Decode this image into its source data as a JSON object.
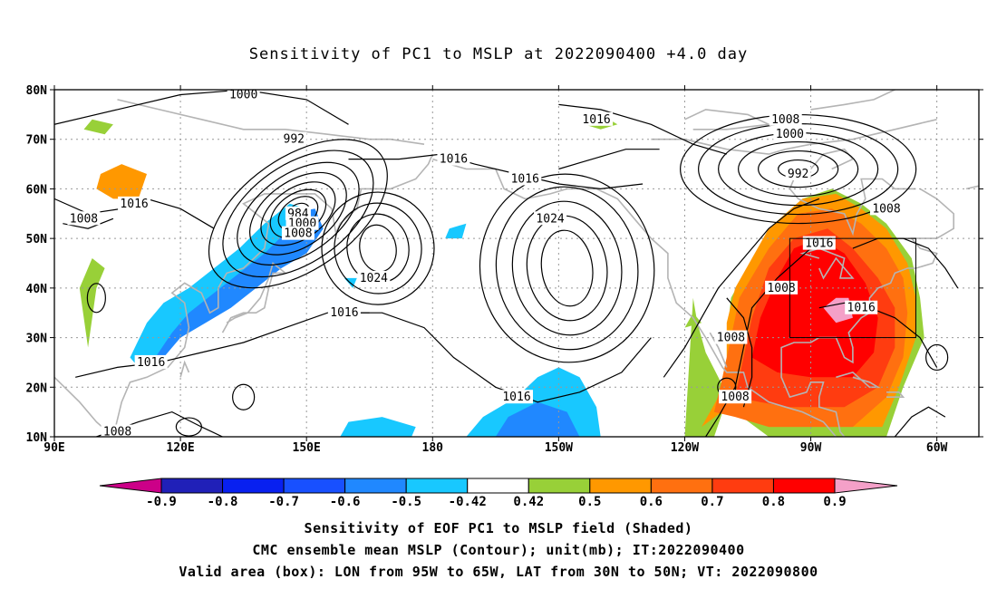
{
  "title": "Sensitivity of PC1 to MSLP at 2022090400 +4.0 day",
  "map": {
    "lat_ticks": [
      "80N",
      "70N",
      "60N",
      "50N",
      "40N",
      "30N",
      "20N",
      "10N"
    ],
    "lon_ticks": [
      "90E",
      "120E",
      "150E",
      "180",
      "150W",
      "120W",
      "90W",
      "60W"
    ],
    "valid_box": {
      "lon": [
        -95,
        -65
      ],
      "lat": [
        30,
        50
      ]
    },
    "contour_labels": [
      {
        "text": "1000",
        "lon": 135,
        "lat": 79
      },
      {
        "text": "992",
        "lon": 147,
        "lat": 70
      },
      {
        "text": "984",
        "lon": 148,
        "lat": 55
      },
      {
        "text": "1000",
        "lon": 149,
        "lat": 53
      },
      {
        "text": "1008",
        "lon": 148,
        "lat": 51
      },
      {
        "text": "1016",
        "lon": 109,
        "lat": 57
      },
      {
        "text": "1008",
        "lon": 97,
        "lat": 54
      },
      {
        "text": "1016",
        "lon": -175,
        "lat": 66
      },
      {
        "text": "1024",
        "lon": 166,
        "lat": 42
      },
      {
        "text": "1016",
        "lon": 159,
        "lat": 35
      },
      {
        "text": "1016",
        "lon": -158,
        "lat": 62
      },
      {
        "text": "1024",
        "lon": -152,
        "lat": 54
      },
      {
        "text": "1016",
        "lon": -141,
        "lat": 74
      },
      {
        "text": "1016",
        "lon": -160,
        "lat": 18
      },
      {
        "text": "1016",
        "lon": 113,
        "lat": 25
      },
      {
        "text": "1008",
        "lon": 105,
        "lat": 11
      },
      {
        "text": "1008",
        "lon": -97,
        "lat": 40
      },
      {
        "text": "1008",
        "lon": -109,
        "lat": 30
      },
      {
        "text": "1008",
        "lon": -108,
        "lat": 18
      },
      {
        "text": "1008",
        "lon": -96,
        "lat": 74
      },
      {
        "text": "1000",
        "lon": -95,
        "lat": 71
      },
      {
        "text": "992",
        "lon": -93,
        "lat": 63
      },
      {
        "text": "1008",
        "lon": -72,
        "lat": 56
      },
      {
        "text": "1016",
        "lon": -88,
        "lat": 49
      },
      {
        "text": "1016",
        "lon": -78,
        "lat": 36
      }
    ]
  },
  "colorbar": {
    "labels": [
      "-0.9",
      "-0.8",
      "-0.7",
      "-0.6",
      "-0.5",
      "-0.42",
      "0.42",
      "0.5",
      "0.6",
      "0.7",
      "0.8",
      "0.9"
    ],
    "colors": [
      "#2020b8",
      "#0820f0",
      "#1850ff",
      "#2088ff",
      "#18c8ff",
      "#ffffff",
      "#98d038",
      "#ff9800",
      "#ff7010",
      "#ff3c10",
      "#ff0000"
    ],
    "end_low_color": "#cc0088",
    "end_high_color": "#f4a0c8"
  },
  "caption": [
    "Sensitivity of EOF PC1 to MSLP field (Shaded)",
    "CMC ensemble mean MSLP (Contour); unit(mb); IT:2022090400",
    "Valid area (box): LON from 95W to 65W, LAT from 30N to 50N; VT: 2022090800"
  ]
}
